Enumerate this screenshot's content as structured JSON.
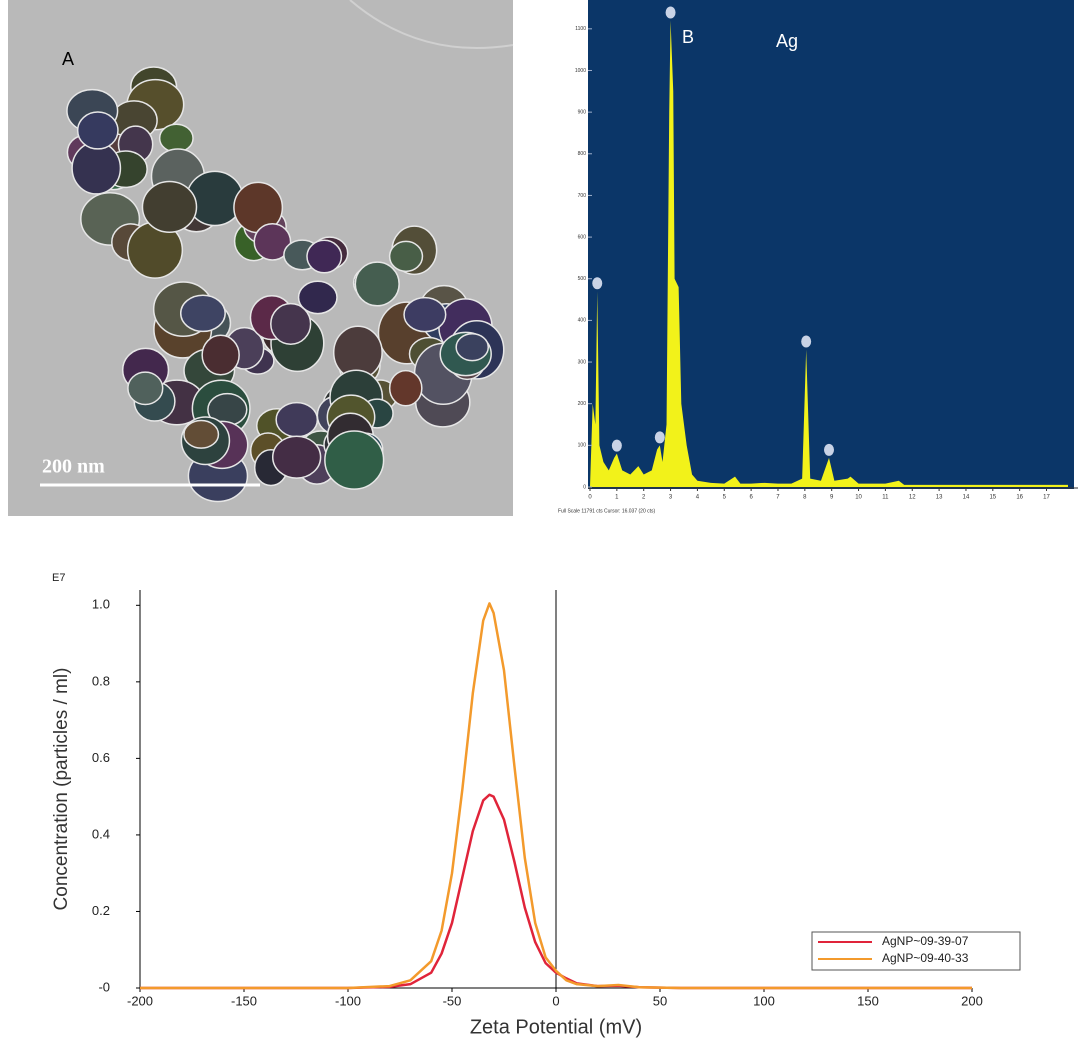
{
  "image_panel": {
    "label": "A",
    "scale_bar": "200 nm"
  },
  "chart_data": [
    {
      "type": "area",
      "color": "#f2f21a",
      "background": "#0b3668",
      "x": [
        0,
        0.1,
        0.2,
        0.27,
        0.35,
        0.5,
        0.7,
        0.9,
        1.0,
        1.2,
        1.5,
        1.8,
        2.0,
        2.3,
        2.5,
        2.6,
        2.7,
        2.85,
        2.95,
        3.0,
        3.1,
        3.15,
        3.3,
        3.4,
        3.6,
        3.8,
        4.0,
        4.5,
        5.0,
        5.4,
        5.6,
        6.0,
        6.5,
        7.0,
        7.5,
        7.9,
        8.05,
        8.2,
        8.6,
        8.9,
        9.1,
        9.6,
        9.7,
        10,
        11,
        11.5,
        11.7,
        12,
        17.8
      ],
      "values": [
        0,
        200,
        150,
        470,
        100,
        60,
        40,
        70,
        80,
        40,
        30,
        50,
        30,
        40,
        90,
        100,
        60,
        150,
        900,
        1120,
        950,
        500,
        480,
        200,
        100,
        30,
        15,
        10,
        8,
        25,
        8,
        8,
        10,
        8,
        8,
        20,
        330,
        20,
        15,
        70,
        15,
        20,
        25,
        8,
        8,
        15,
        5,
        5,
        5
      ],
      "markers": {
        "x": [
          0.27,
          1.0,
          2.6,
          3.0,
          8.05,
          8.9
        ],
        "y": [
          470,
          80,
          100,
          1120,
          330,
          70
        ],
        "color": "#c9d3e6"
      },
      "annotations": [
        "B",
        "Ag"
      ],
      "footer": "Full Scale 11791 cts Cursor: 16.037 (20 cts)",
      "xlim": [
        0,
        17.8
      ],
      "ylim": [
        0,
        1150
      ],
      "xticks": [
        0,
        1,
        2,
        3,
        4,
        5,
        6,
        7,
        8,
        9,
        10,
        11,
        12,
        13,
        14,
        15,
        16,
        17
      ],
      "yticks": [
        0,
        100,
        200,
        300,
        400,
        500,
        600,
        700,
        800,
        900,
        1000,
        1100
      ]
    },
    {
      "type": "line",
      "x_label": "Zeta Potential (mV)",
      "y_label": "Concentration (particles / ml)",
      "y_multiplier": "E7",
      "x": [
        -200,
        -100,
        -80,
        -70,
        -60,
        -55,
        -50,
        -45,
        -40,
        -35,
        -32,
        -30,
        -25,
        -20,
        -15,
        -10,
        -5,
        0,
        5,
        10,
        20,
        30,
        40,
        60,
        200
      ],
      "series": [
        {
          "name": "AgNP~09-39-07",
          "color": "#e0243a",
          "values": [
            0,
            0,
            0.003,
            0.01,
            0.04,
            0.09,
            0.17,
            0.29,
            0.41,
            0.49,
            0.505,
            0.5,
            0.44,
            0.33,
            0.21,
            0.12,
            0.065,
            0.04,
            0.025,
            0.012,
            0.005,
            0.006,
            0.002,
            0,
            0
          ]
        },
        {
          "name": "AgNP~09-40-33",
          "color": "#f39a2c",
          "values": [
            0,
            0,
            0.005,
            0.02,
            0.07,
            0.15,
            0.3,
            0.52,
            0.77,
            0.96,
            1.005,
            0.98,
            0.83,
            0.58,
            0.34,
            0.17,
            0.08,
            0.045,
            0.02,
            0.01,
            0.005,
            0.008,
            0.002,
            0,
            0
          ]
        }
      ],
      "xlim": [
        -200,
        200
      ],
      "ylim": [
        0,
        1.04
      ],
      "xticks": [
        -200,
        -150,
        -100,
        -50,
        0,
        50,
        100,
        150,
        200
      ],
      "yticks": [
        {
          "value": 0,
          "label": "-0"
        },
        0.2,
        0.4,
        0.6,
        0.8,
        {
          "value": 1,
          "label": "1.0"
        }
      ],
      "zero_line": true,
      "legend": "lower-right"
    }
  ]
}
